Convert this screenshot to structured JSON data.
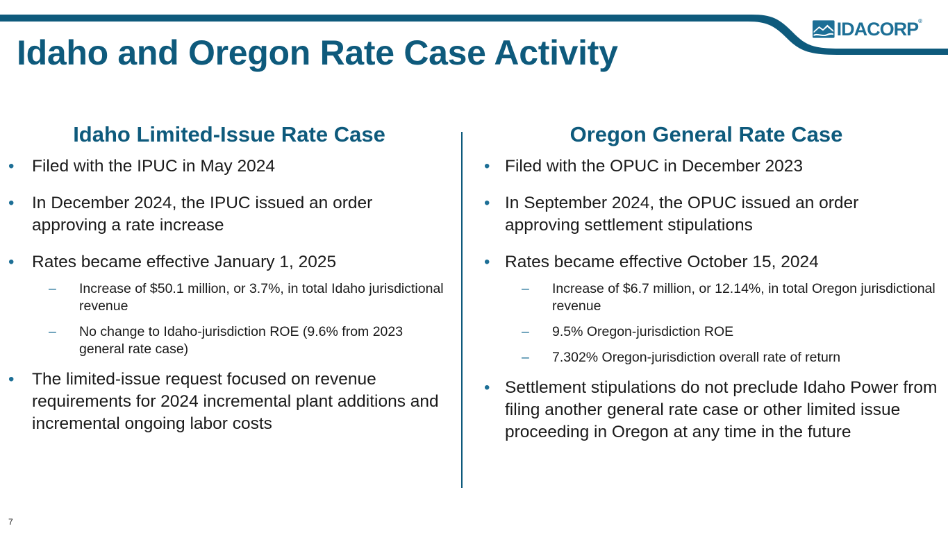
{
  "title": "Idaho and Oregon Rate Case Activity",
  "logo": {
    "text": "IDACORP",
    "registered": "®"
  },
  "colors": {
    "brand": "#0e5a7c",
    "accent": "#1d6f96"
  },
  "left": {
    "heading": "Idaho Limited-Issue Rate Case",
    "bullets": [
      {
        "text": "Filed with the IPUC in May 2024",
        "subs": []
      },
      {
        "text": "In December 2024, the IPUC issued an order approving a rate increase",
        "subs": []
      },
      {
        "text": "Rates became effective January 1, 2025",
        "subs": [
          "Increase of $50.1 million, or 3.7%, in total Idaho jurisdictional revenue",
          "No change to Idaho-jurisdiction ROE (9.6% from 2023 general rate case)"
        ]
      },
      {
        "text": "The limited-issue request focused on revenue requirements for 2024 incremental plant additions and incremental ongoing labor costs",
        "subs": []
      }
    ]
  },
  "right": {
    "heading": "Oregon General Rate Case",
    "bullets": [
      {
        "text": "Filed with the OPUC in December 2023",
        "subs": []
      },
      {
        "text": "In September 2024, the OPUC issued an order approving settlement stipulations",
        "subs": []
      },
      {
        "text": "Rates became effective October 15, 2024",
        "subs": [
          "Increase of $6.7 million, or 12.14%, in total Oregon jurisdictional revenue",
          "9.5% Oregon-jurisdiction ROE",
          "7.302% Oregon-jurisdiction overall rate of return"
        ]
      },
      {
        "text": "Settlement stipulations do not preclude Idaho Power from filing another general rate case or other limited issue proceeding in Oregon at any time in the future",
        "subs": []
      }
    ]
  },
  "slide_number": "7"
}
